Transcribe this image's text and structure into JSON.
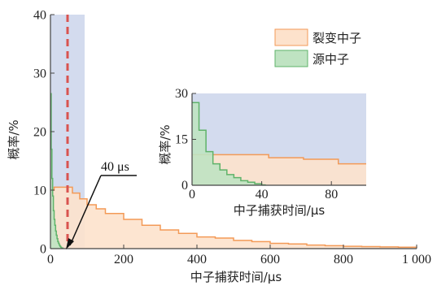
{
  "chart_data": [
    {
      "type": "area",
      "xlabel": "中子捕获时间/μs",
      "ylabel": "概率/%",
      "xlim": [
        0,
        1000
      ],
      "ylim": [
        0,
        40
      ],
      "xticks": [
        "0",
        "200",
        "400",
        "600",
        "800",
        "1 000"
      ],
      "yticks": [
        "0",
        "10",
        "20",
        "30",
        "40"
      ],
      "legend_position": "top-right",
      "shaded_window": [
        0,
        100
      ],
      "marker_line_x": 40,
      "annotation": "40 μs",
      "series": [
        {
          "name": "裂变中子",
          "color": "#f39a57",
          "fill": "#fde2cc",
          "steps": [
            [
              0,
              10
            ],
            [
              10,
              10.5
            ],
            [
              40,
              10.5
            ],
            [
              60,
              9.5
            ],
            [
              80,
              8.5
            ],
            [
              100,
              7.5
            ],
            [
              125,
              6.8
            ],
            [
              150,
              6.0
            ],
            [
              200,
              5.0
            ],
            [
              250,
              4.0
            ],
            [
              300,
              3.2
            ],
            [
              350,
              2.6
            ],
            [
              400,
              2.0
            ],
            [
              450,
              1.8
            ],
            [
              500,
              1.4
            ],
            [
              550,
              1.2
            ],
            [
              600,
              0.9
            ],
            [
              650,
              0.8
            ],
            [
              700,
              0.6
            ],
            [
              750,
              0.5
            ],
            [
              800,
              0.4
            ],
            [
              850,
              0.35
            ],
            [
              900,
              0.3
            ],
            [
              950,
              0.25
            ],
            [
              1000,
              0.2
            ]
          ]
        },
        {
          "name": "源中子",
          "color": "#5fb36a",
          "fill": "#bfe3c2",
          "steps": [
            [
              0,
              26.5
            ],
            [
              2,
              17
            ],
            [
              4,
              12
            ],
            [
              6,
              9
            ],
            [
              8,
              6.5
            ],
            [
              10,
              5
            ],
            [
              12,
              4
            ],
            [
              14,
              3
            ],
            [
              16,
              2.3
            ],
            [
              18,
              1.7
            ],
            [
              20,
              1.2
            ],
            [
              22,
              0.9
            ],
            [
              24,
              0.6
            ],
            [
              26,
              0.4
            ],
            [
              28,
              0.25
            ],
            [
              30,
              0.1
            ],
            [
              34,
              0
            ]
          ]
        }
      ]
    },
    {
      "type": "area",
      "xlabel": "中子捕获时间/μs",
      "ylabel": "概率/%",
      "xlim": [
        0,
        100
      ],
      "ylim": [
        0,
        30
      ],
      "xticks": [
        "0",
        "40",
        "80"
      ],
      "yticks": [
        "0",
        "15",
        "30"
      ],
      "series": [
        {
          "name": "裂变中子",
          "color": "#f39a57",
          "fill": "#fde2cc",
          "steps": [
            [
              0,
              10
            ],
            [
              10,
              10
            ],
            [
              40,
              10
            ],
            [
              44,
              9
            ],
            [
              60,
              9
            ],
            [
              64,
              8.5
            ],
            [
              80,
              8.5
            ],
            [
              84,
              7
            ],
            [
              100,
              7
            ]
          ]
        },
        {
          "name": "源中子",
          "color": "#5fb36a",
          "fill": "#bfe3c2",
          "steps": [
            [
              0,
              27
            ],
            [
              4,
              18
            ],
            [
              8,
              11
            ],
            [
              12,
              7
            ],
            [
              16,
              5
            ],
            [
              20,
              3.5
            ],
            [
              24,
              2.5
            ],
            [
              28,
              1.5
            ],
            [
              32,
              1
            ],
            [
              36,
              0.5
            ],
            [
              40,
              0.1
            ],
            [
              42,
              0
            ]
          ]
        }
      ]
    }
  ]
}
